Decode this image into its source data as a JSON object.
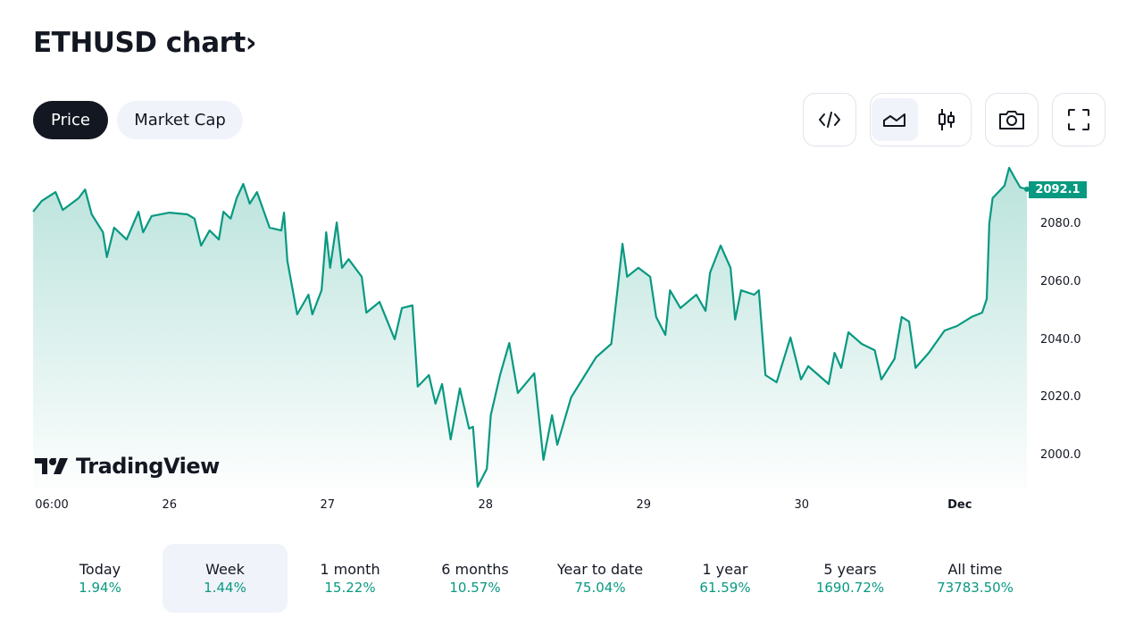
{
  "header": {
    "title": "ETHUSD chart",
    "chevron": "›"
  },
  "tabs": [
    {
      "label": "Price",
      "active": true
    },
    {
      "label": "Market Cap",
      "active": false
    }
  ],
  "toolbar": {
    "icons": [
      "embed-code-icon",
      "area-chart-icon",
      "candlestick-icon",
      "camera-icon",
      "fullscreen-icon"
    ],
    "active_chart_type": "area"
  },
  "brand": {
    "logo_text": "TradingView"
  },
  "colors": {
    "accent": "#089981",
    "dark": "#131722",
    "light_bg": "#f0f3fa"
  },
  "chart_data": {
    "type": "area",
    "title": "ETHUSD",
    "x_unit": "hours since Nov 25 00:00",
    "y_ticks": [
      "2080.0",
      "2060.0",
      "2040.0",
      "2020.0",
      "2000.0"
    ],
    "y_tick_values": [
      2080,
      2060,
      2040,
      2020,
      2000
    ],
    "x_ticks": [
      {
        "label": "06:00",
        "hour": 6
      },
      {
        "label": "26",
        "hour": 24
      },
      {
        "label": "27",
        "hour": 48
      },
      {
        "label": "28",
        "hour": 72
      },
      {
        "label": "29",
        "hour": 96
      },
      {
        "label": "30",
        "hour": 120
      },
      {
        "label": "Dec",
        "hour": 144,
        "bold": true
      }
    ],
    "last_price": "2092.1",
    "points": [
      [
        3.3,
        2084.3
      ],
      [
        4.6,
        2088.0
      ],
      [
        6.7,
        2091.1
      ],
      [
        7.8,
        2084.9
      ],
      [
        10.2,
        2089.0
      ],
      [
        11.2,
        2092.0
      ],
      [
        12.2,
        2083.4
      ],
      [
        13.9,
        2077.2
      ],
      [
        14.5,
        2068.6
      ],
      [
        15.6,
        2078.8
      ],
      [
        17.5,
        2074.7
      ],
      [
        19.3,
        2084.3
      ],
      [
        20.0,
        2077.2
      ],
      [
        21.3,
        2082.8
      ],
      [
        24.0,
        2084.0
      ],
      [
        26.7,
        2083.4
      ],
      [
        27.8,
        2081.9
      ],
      [
        28.8,
        2072.6
      ],
      [
        30.1,
        2077.8
      ],
      [
        31.5,
        2074.7
      ],
      [
        32.2,
        2084.3
      ],
      [
        33.3,
        2081.9
      ],
      [
        34.2,
        2089.0
      ],
      [
        35.2,
        2093.9
      ],
      [
        36.2,
        2087.1
      ],
      [
        37.3,
        2091.1
      ],
      [
        39.2,
        2078.8
      ],
      [
        41.0,
        2077.8
      ],
      [
        41.4,
        2084.0
      ],
      [
        41.9,
        2067.3
      ],
      [
        43.4,
        2048.8
      ],
      [
        45.1,
        2055.6
      ],
      [
        45.7,
        2048.8
      ],
      [
        47.1,
        2057.1
      ],
      [
        47.8,
        2077.2
      ],
      [
        48.4,
        2064.9
      ],
      [
        49.4,
        2080.6
      ],
      [
        50.2,
        2064.9
      ],
      [
        51.2,
        2067.9
      ],
      [
        53.2,
        2061.8
      ],
      [
        53.9,
        2049.4
      ],
      [
        55.9,
        2053.1
      ],
      [
        58.2,
        2040.2
      ],
      [
        59.3,
        2051.0
      ],
      [
        60.9,
        2051.9
      ],
      [
        61.7,
        2023.8
      ],
      [
        63.4,
        2027.8
      ],
      [
        64.4,
        2017.9
      ],
      [
        65.4,
        2024.7
      ],
      [
        66.7,
        2005.6
      ],
      [
        68.1,
        2023.2
      ],
      [
        69.5,
        2009.3
      ],
      [
        70.1,
        2009.9
      ],
      [
        70.8,
        1989.2
      ],
      [
        72.2,
        1995.4
      ],
      [
        72.8,
        2013.9
      ],
      [
        74.2,
        2027.8
      ],
      [
        75.6,
        2038.9
      ],
      [
        76.9,
        2021.6
      ],
      [
        79.4,
        2028.4
      ],
      [
        80.0,
        2015.4
      ],
      [
        80.8,
        1998.5
      ],
      [
        82.1,
        2013.9
      ],
      [
        82.9,
        2003.7
      ],
      [
        85.0,
        2020.1
      ],
      [
        87.1,
        2027.8
      ],
      [
        88.8,
        2034.0
      ],
      [
        91.1,
        2038.6
      ],
      [
        92.1,
        2058.7
      ],
      [
        92.8,
        2073.2
      ],
      [
        93.5,
        2061.8
      ],
      [
        95.2,
        2064.9
      ],
      [
        97.0,
        2061.8
      ],
      [
        97.9,
        2047.9
      ],
      [
        99.3,
        2041.7
      ],
      [
        100.0,
        2057.1
      ],
      [
        101.6,
        2051.0
      ],
      [
        104.0,
        2055.6
      ],
      [
        105.4,
        2050.0
      ],
      [
        106.1,
        2063.3
      ],
      [
        107.7,
        2072.6
      ],
      [
        109.2,
        2064.9
      ],
      [
        109.9,
        2047.0
      ],
      [
        110.8,
        2057.1
      ],
      [
        112.8,
        2055.6
      ],
      [
        113.5,
        2057.1
      ],
      [
        114.5,
        2027.8
      ],
      [
        116.2,
        2025.3
      ],
      [
        118.3,
        2040.8
      ],
      [
        119.9,
        2026.3
      ],
      [
        121.0,
        2030.9
      ],
      [
        124.1,
        2024.7
      ],
      [
        125.0,
        2035.5
      ],
      [
        126.0,
        2030.3
      ],
      [
        127.1,
        2042.6
      ],
      [
        129.1,
        2038.6
      ],
      [
        131.1,
        2036.4
      ],
      [
        132.1,
        2026.3
      ],
      [
        134.1,
        2033.4
      ],
      [
        135.2,
        2047.9
      ],
      [
        136.3,
        2046.3
      ],
      [
        137.3,
        2030.3
      ],
      [
        139.3,
        2035.5
      ],
      [
        141.7,
        2043.2
      ],
      [
        143.6,
        2044.8
      ],
      [
        145.8,
        2047.9
      ],
      [
        147.4,
        2049.4
      ],
      [
        148.1,
        2054.1
      ],
      [
        148.5,
        2080.3
      ],
      [
        149.0,
        2089.0
      ],
      [
        150.8,
        2093.3
      ],
      [
        151.5,
        2099.5
      ],
      [
        152.4,
        2095.8
      ],
      [
        153.2,
        2092.7
      ],
      [
        154.2,
        2092.1
      ]
    ]
  },
  "periods": [
    {
      "label": "Today",
      "value": "1.94%"
    },
    {
      "label": "Week",
      "value": "1.44%",
      "selected": true
    },
    {
      "label": "1 month",
      "value": "15.22%"
    },
    {
      "label": "6 months",
      "value": "10.57%"
    },
    {
      "label": "Year to date",
      "value": "75.04%"
    },
    {
      "label": "1 year",
      "value": "61.59%"
    },
    {
      "label": "5 years",
      "value": "1690.72%"
    },
    {
      "label": "All time",
      "value": "73783.50%"
    }
  ]
}
